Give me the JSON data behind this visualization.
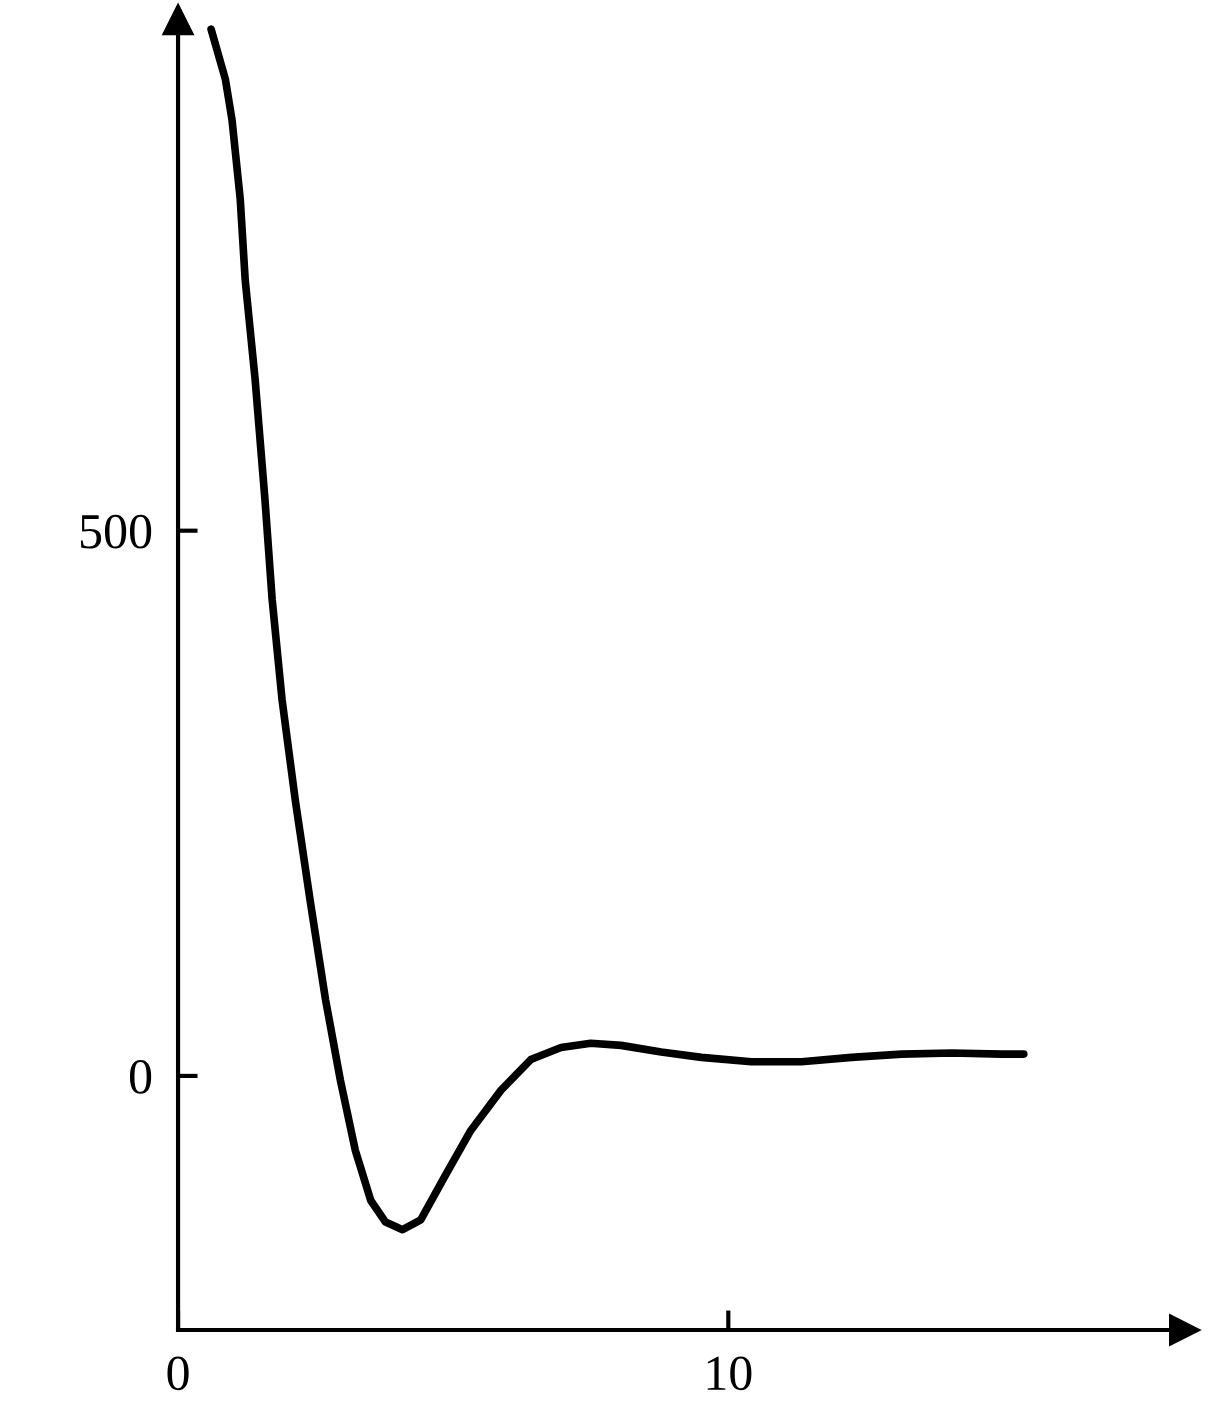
{
  "chart_data": {
    "type": "line",
    "xlim": [
      0,
      18.3
    ],
    "ylim": [
      -233,
      969
    ],
    "xticks": [
      0,
      10
    ],
    "yticks": [
      0,
      500
    ],
    "series": [
      {
        "color": "#000000",
        "x": [
          0.6,
          0.86,
          0.98,
          1.13,
          1.22,
          1.4,
          1.58,
          1.71,
          1.89,
          2.13,
          2.4,
          2.68,
          2.95,
          3.22,
          3.5,
          3.77,
          4.08,
          4.41,
          4.86,
          5.32,
          5.87,
          6.41,
          6.96,
          7.5,
          8.05,
          8.78,
          9.51,
          10.42,
          11.33,
          12.24,
          13.15,
          14.06,
          14.97,
          15.37
        ],
        "values": [
          960,
          914,
          877,
          804,
          730,
          639,
          528,
          437,
          345,
          253,
          161,
          70,
          -4,
          -68,
          -114,
          -134,
          -141,
          -132,
          -91,
          -50,
          -13,
          15,
          26,
          30,
          28,
          22,
          17,
          13,
          13,
          17,
          20,
          21,
          20,
          20
        ]
      }
    ]
  }
}
